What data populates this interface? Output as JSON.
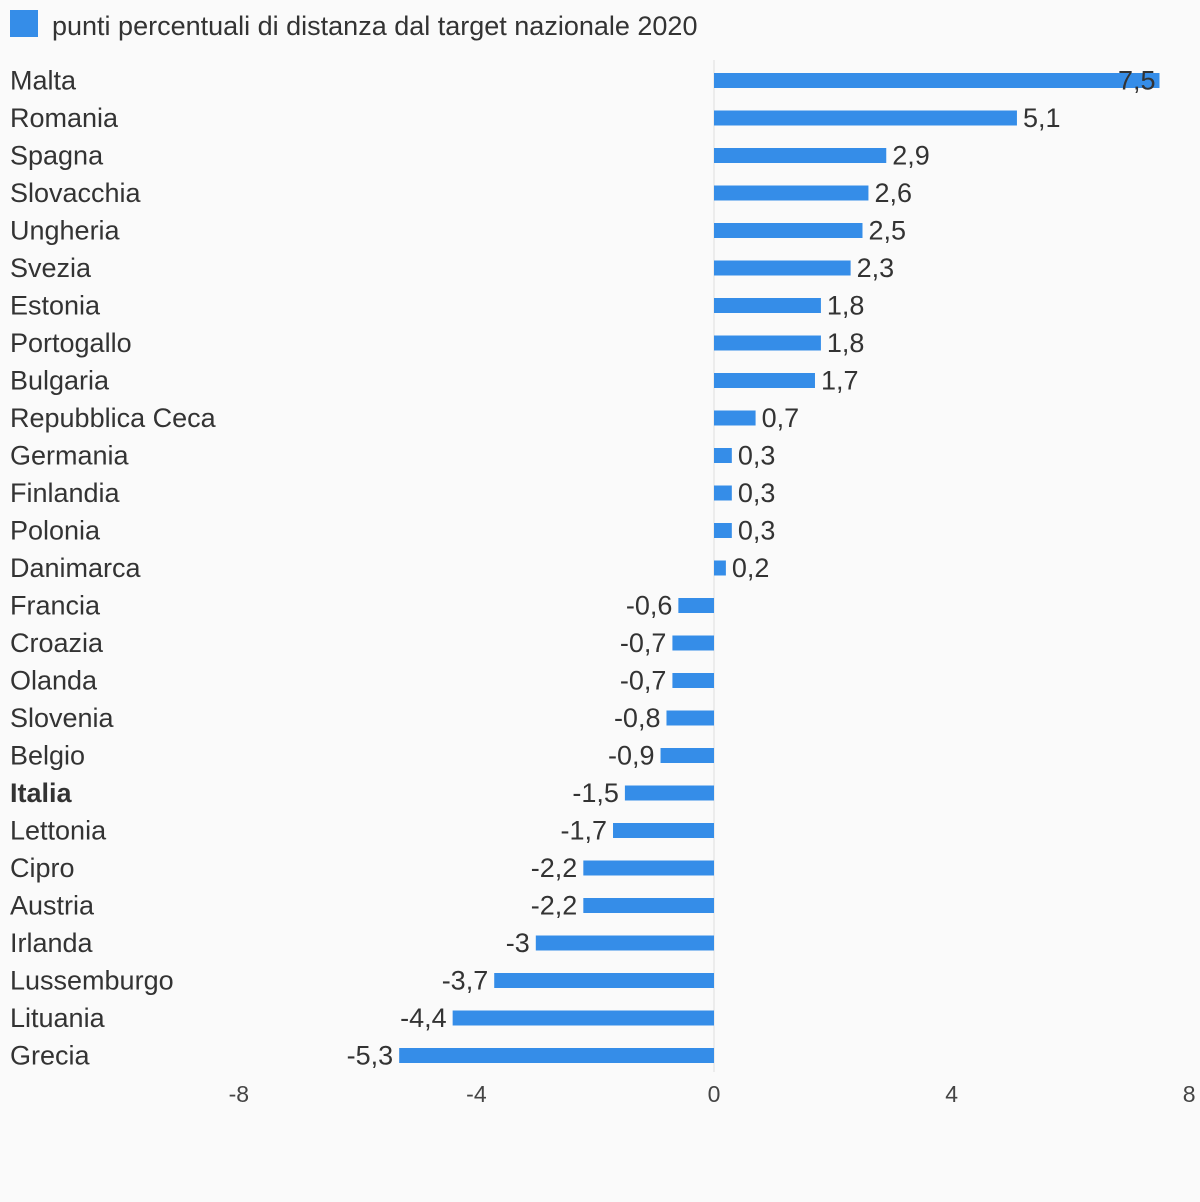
{
  "chart_data": {
    "type": "bar",
    "orientation": "horizontal",
    "title": "",
    "xlabel": "",
    "ylabel": "",
    "legend": {
      "position": "top-left",
      "entries": [
        "punti percentuali di distanza dal target nazionale 2020"
      ]
    },
    "series": [
      {
        "name": "punti percentuali di distanza dal target nazionale 2020",
        "color": "#358de8",
        "values": [
          7.5,
          5.1,
          2.9,
          2.6,
          2.5,
          2.3,
          1.8,
          1.8,
          1.7,
          0.7,
          0.3,
          0.3,
          0.3,
          0.2,
          -0.6,
          -0.7,
          -0.7,
          -0.8,
          -0.9,
          -1.5,
          -1.7,
          -2.2,
          -2.2,
          -3,
          -3.7,
          -4.4,
          -5.3
        ],
        "value_labels": [
          "7,5",
          "5,1",
          "2,9",
          "2,6",
          "2,5",
          "2,3",
          "1,8",
          "1,8",
          "1,7",
          "0,7",
          "0,3",
          "0,3",
          "0,3",
          "0,2",
          "-0,6",
          "-0,7",
          "-0,7",
          "-0,8",
          "-0,9",
          "-1,5",
          "-1,7",
          "-2,2",
          "-2,2",
          "-3",
          "-3,7",
          "-4,4",
          "-5,3"
        ]
      }
    ],
    "categories": [
      "Malta",
      "Romania",
      "Spagna",
      "Slovacchia",
      "Ungheria",
      "Svezia",
      "Estonia",
      "Portogallo",
      "Bulgaria",
      "Repubblica Ceca",
      "Germania",
      "Finlandia",
      "Polonia",
      "Danimarca",
      "Francia",
      "Croazia",
      "Olanda",
      "Slovenia",
      "Belgio",
      "Italia",
      "Lettonia",
      "Cipro",
      "Austria",
      "Irlanda",
      "Lussemburgo",
      "Lituania",
      "Grecia"
    ],
    "highlighted_category": "Italia",
    "xlim": [
      -8,
      8
    ],
    "xticks": [
      -8,
      -4,
      0,
      4,
      8
    ],
    "xtick_labels": [
      "-8",
      "-4",
      "0",
      "4",
      "8"
    ],
    "grid": false
  }
}
